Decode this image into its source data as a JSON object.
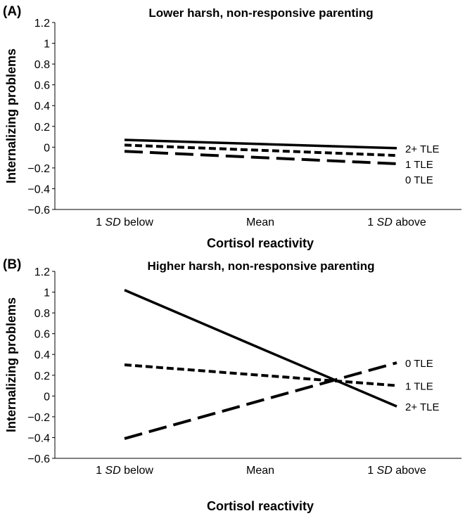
{
  "chart_data": [
    {
      "panel_label": "(A)",
      "type": "line",
      "title": "Lower harsh, non-responsive parenting",
      "xlabel": "Cortisol reactivity",
      "ylabel": "Internalizing problems",
      "categories": [
        [
          "1 ",
          "SD",
          " below"
        ],
        [
          "Mean"
        ],
        [
          "1 ",
          "SD",
          " above"
        ]
      ],
      "yticks": [
        "1.2",
        "1",
        "0.8",
        "0.6",
        "0.4",
        "0.2",
        "0",
        "−0.2",
        "−0.4",
        "−0.6"
      ],
      "ylim": [
        -0.6,
        1.2
      ],
      "grid": false,
      "series": [
        {
          "name": "2+ TLE",
          "style": "solid",
          "values": [
            0.07,
            0.03,
            -0.01
          ]
        },
        {
          "name": "1 TLE",
          "style": "short-dash",
          "values": [
            0.02,
            -0.03,
            -0.08
          ]
        },
        {
          "name": "0 TLE",
          "style": "long-dash",
          "values": [
            -0.04,
            -0.1,
            -0.16
          ]
        }
      ]
    },
    {
      "panel_label": "(B)",
      "type": "line",
      "title": "Higher harsh, non-responsive parenting",
      "xlabel": "Cortisol reactivity",
      "ylabel": "Internalizing problems",
      "categories": [
        [
          "1 ",
          "SD",
          " below"
        ],
        [
          "Mean"
        ],
        [
          "1 ",
          "SD",
          " above"
        ]
      ],
      "yticks": [
        "1.2",
        "1",
        "0.8",
        "0.6",
        "0.4",
        "0.2",
        "0",
        "−0.2",
        "−0.4",
        "−0.6"
      ],
      "ylim": [
        -0.6,
        1.2
      ],
      "grid": false,
      "series": [
        {
          "name": "0 TLE",
          "style": "long-dash",
          "values": [
            -0.41,
            -0.045,
            0.32
          ]
        },
        {
          "name": "1 TLE",
          "style": "short-dash",
          "values": [
            0.3,
            0.2,
            0.1
          ]
        },
        {
          "name": "2+ TLE",
          "style": "solid",
          "values": [
            1.02,
            0.46,
            -0.1
          ]
        }
      ]
    }
  ]
}
